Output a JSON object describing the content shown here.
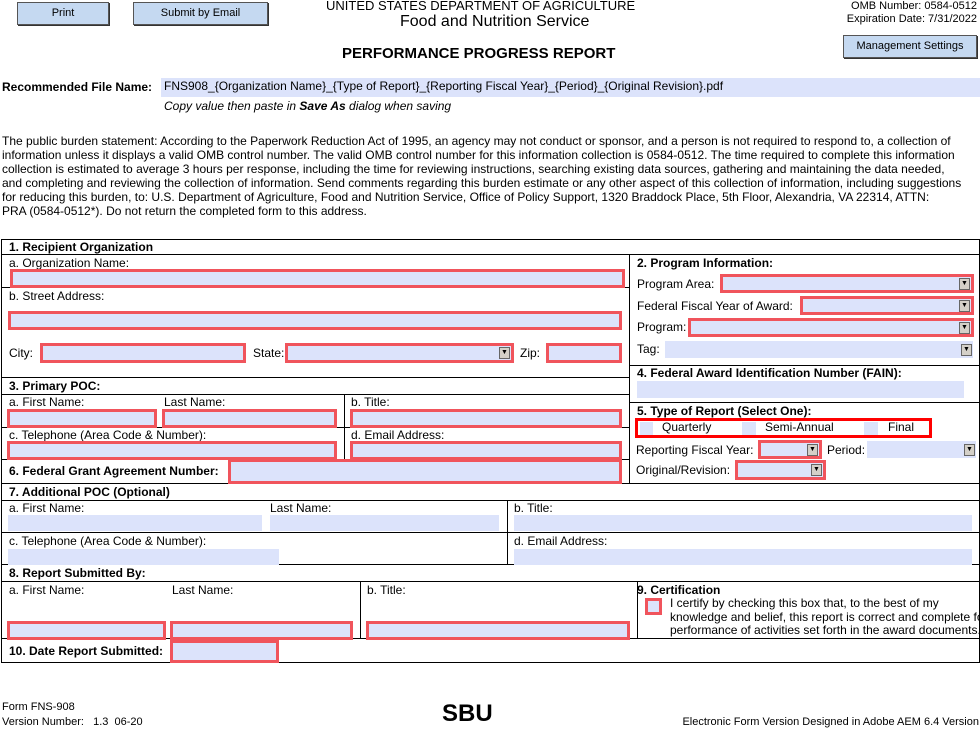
{
  "toolbar": {
    "print": "Print",
    "email": "Submit by Email",
    "management": "Management Settings"
  },
  "header": {
    "agency": "UNITED STATES DEPARTMENT OF AGRICULTURE",
    "service": "Food and Nutrition Service",
    "omb": "OMB Number: 0584-0512",
    "expiration": "Expiration Date: 7/31/2022",
    "title": "PERFORMANCE PROGRESS REPORT"
  },
  "filename": {
    "label": "Recommended File Name:",
    "value": "FNS908_{Organization Name}_{Type of Report}_{Reporting Fiscal Year}_{Period}_{Original Revision}.pdf",
    "hint_pre": "Copy value then paste in ",
    "hint_bold": "Save As",
    "hint_post": " dialog when saving"
  },
  "burden": [
    "The public burden statement: According to the Paperwork Reduction Act of 1995, an agency may not conduct or sponsor, and a person is not required to respond to, a collection of",
    "information unless it displays a valid OMB control number. The valid OMB control number for this information collection is 0584-0512. The time required to complete this information",
    "collection is estimated to average 3 hours per response, including the time for reviewing instructions, searching existing data sources, gathering and maintaining the data needed,",
    "and completing and reviewing the collection of information. Send comments regarding this burden estimate or any other aspect of this collection of information, including suggestions",
    "for reducing this burden, to: U.S. Department of Agriculture, Food and Nutrition Service, Office of Policy Support, 1320 Braddock Place, 5th Floor, Alexandria, VA 22314, ATTN:",
    "PRA (0584-0512*). Do not return the completed form to this address."
  ],
  "s1": {
    "title": "1. Recipient Organization",
    "org": "a. Organization Name:",
    "street": "b. Street Address:",
    "city": "City:",
    "state": "State:",
    "zip": "Zip:"
  },
  "s2": {
    "title": "2. Program Information:",
    "area": "Program Area:",
    "ffy": "Federal Fiscal Year of Award:",
    "program": "Program:",
    "tag": "Tag:"
  },
  "s3": {
    "title": "3. Primary POC:",
    "first": "a. First Name:",
    "last": "Last Name:",
    "ttl": "b. Title:",
    "tel": "c. Telephone (Area Code & Number):",
    "email": "d. Email Address:"
  },
  "s4": {
    "title": "4. Federal Award Identification Number (FAIN):"
  },
  "s5": {
    "title": "5. Type of Report (Select One):",
    "options": [
      "Quarterly",
      "Semi-Annual",
      "Final"
    ],
    "rfy": "Reporting Fiscal Year:",
    "period": "Period:",
    "orig": "Original/Revision:"
  },
  "s6": {
    "title": "6. Federal Grant Agreement Number:"
  },
  "s7": {
    "title": "7. Additional POC (Optional)",
    "first": "a. First Name:",
    "last": "Last Name:",
    "ttl": "b. Title:",
    "tel": "c. Telephone (Area Code & Number):",
    "email": "d. Email Address:"
  },
  "s8": {
    "title": "8. Report Submitted By:",
    "first": "a. First Name:",
    "last": "Last Name:",
    "ttl": "b. Title:"
  },
  "s9": {
    "title": "9. Certification",
    "text": [
      "I certify by checking this box that, to the best of my",
      "knowledge and belief, this report is correct and complete for",
      "performance of activities set forth in the award documents."
    ]
  },
  "s10": {
    "title": "10. Date Report Submitted:"
  },
  "footer": {
    "form": "Form FNS-908",
    "version": "Version Number:   1.3  06-20",
    "sbu": "SBU",
    "designed": "Electronic Form Version Designed in Adobe AEM 6.4 Version"
  },
  "colors": {
    "required_border": "#f0545c",
    "field_fill": "#dce3fb",
    "button_fill": "#c5d9f1"
  }
}
